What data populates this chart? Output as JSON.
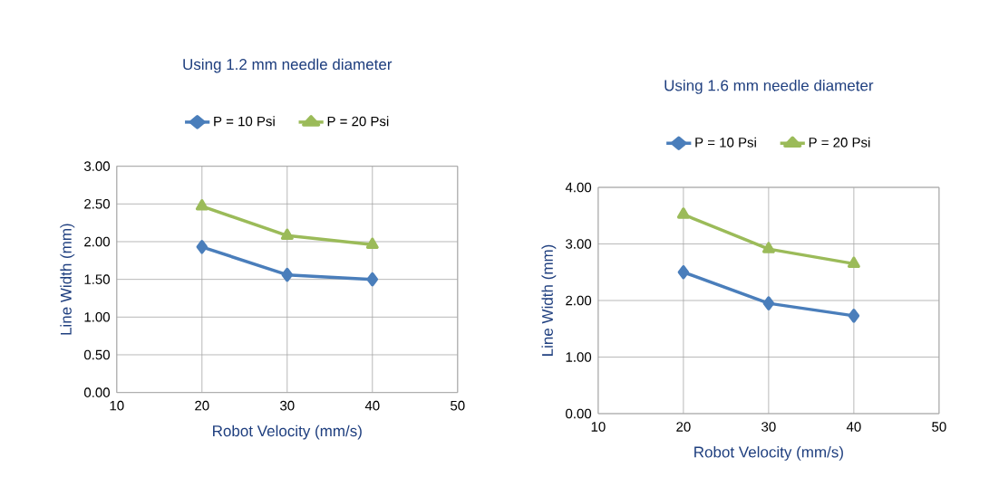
{
  "chart_data": [
    {
      "type": "line",
      "title": "Using 1.2 mm needle diameter",
      "xlabel": "Robot Velocity (mm/s)",
      "ylabel": "Line Width (mm)",
      "x": [
        20,
        30,
        40
      ],
      "series": [
        {
          "name": "P = 10 Psi",
          "color": "#4a7ebb",
          "marker": "diamond",
          "values": [
            1.93,
            1.56,
            1.5
          ]
        },
        {
          "name": "P = 20 Psi",
          "color": "#9bbb59",
          "marker": "triangle",
          "values": [
            2.47,
            2.08,
            1.96
          ]
        }
      ],
      "xlim": [
        10,
        50
      ],
      "xticks": [
        10,
        20,
        30,
        40,
        50
      ],
      "ylim": [
        0,
        3
      ],
      "yticks": [
        {
          "value": 0,
          "label": "0.00"
        },
        {
          "value": 0.5,
          "label": "0.50"
        },
        {
          "value": 1,
          "label": "1.00"
        },
        {
          "value": 1.5,
          "label": "1.50"
        },
        {
          "value": 2,
          "label": "2.00"
        },
        {
          "value": 2.5,
          "label": "2.50"
        },
        {
          "value": 3,
          "label": "3.00"
        }
      ],
      "grid": true,
      "legend": "top"
    },
    {
      "type": "line",
      "title": "Using 1.6 mm needle diameter",
      "xlabel": "Robot Velocity (mm/s)",
      "ylabel": "Line Width (mm)",
      "x": [
        20,
        30,
        40
      ],
      "series": [
        {
          "name": "P = 10 Psi",
          "color": "#4a7ebb",
          "marker": "diamond",
          "values": [
            2.5,
            1.95,
            1.73
          ]
        },
        {
          "name": "P = 20 Psi",
          "color": "#9bbb59",
          "marker": "triangle",
          "values": [
            3.52,
            2.91,
            2.65
          ]
        }
      ],
      "xlim": [
        10,
        50
      ],
      "xticks": [
        10,
        20,
        30,
        40,
        50
      ],
      "ylim": [
        0,
        4
      ],
      "yticks": [
        {
          "value": 0,
          "label": "0.00"
        },
        {
          "value": 1,
          "label": "1.00"
        },
        {
          "value": 2,
          "label": "2.00"
        },
        {
          "value": 3,
          "label": "3.00"
        },
        {
          "value": 4,
          "label": "4.00"
        }
      ],
      "grid": true,
      "legend": "top"
    }
  ]
}
